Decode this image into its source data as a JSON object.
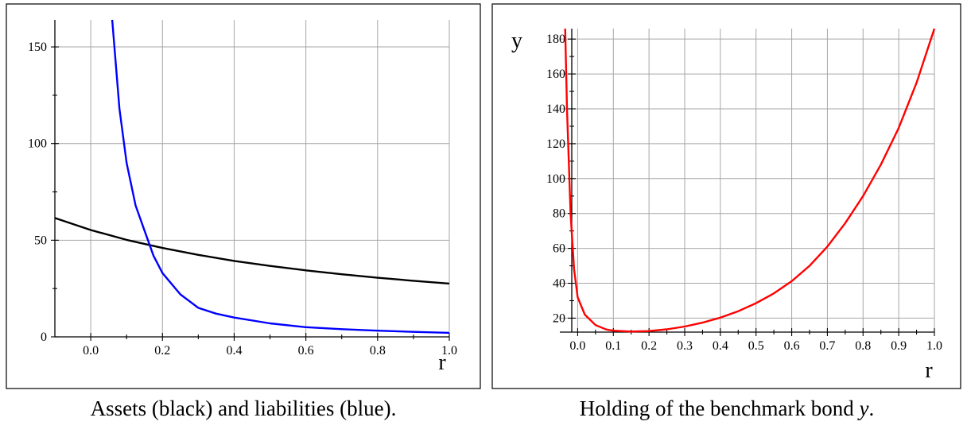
{
  "chart_data": [
    {
      "type": "line",
      "caption": "Assets (black) and liabilities (blue).",
      "xlabel": "r",
      "ylabel": "",
      "xlim": [
        -0.1,
        1.0
      ],
      "ylim": [
        0,
        164
      ],
      "x_ticks": [
        "0.0",
        "0.2",
        "0.4",
        "0.6",
        "0.8",
        "1.0"
      ],
      "y_ticks": [
        "0",
        "50",
        "100",
        "150"
      ],
      "grid": true,
      "series": [
        {
          "color": "#000000",
          "x": [
            -0.1,
            0.0,
            0.1,
            0.2,
            0.3,
            0.4,
            0.5,
            0.6,
            0.7,
            0.8,
            0.9,
            1.0
          ],
          "values": [
            61.5,
            55.3,
            50.2,
            46.0,
            42.4,
            39.3,
            36.7,
            34.4,
            32.4,
            30.6,
            29.0,
            27.6
          ]
        },
        {
          "color": "#0000ff",
          "x": [
            0.06,
            0.08,
            0.1,
            0.125,
            0.15,
            0.175,
            0.2,
            0.25,
            0.3,
            0.35,
            0.4,
            0.5,
            0.6,
            0.7,
            0.8,
            0.9,
            1.0
          ],
          "values": [
            164,
            118,
            90,
            68,
            55,
            42,
            33,
            22,
            15,
            12,
            10,
            7,
            5,
            4,
            3.2,
            2.6,
            2.1
          ]
        }
      ]
    },
    {
      "type": "line",
      "caption_prefix": "Holding of the benchmark bond ",
      "caption_var": "y",
      "caption_suffix": ".",
      "xlabel": "r",
      "ylabel": "y",
      "xlim": [
        -0.05,
        1.0
      ],
      "ylim": [
        12,
        186
      ],
      "x_ticks": [
        "0.0",
        "0.1",
        "0.2",
        "0.3",
        "0.4",
        "0.5",
        "0.6",
        "0.7",
        "0.8",
        "0.9",
        "1.0"
      ],
      "y_ticks": [
        "20",
        "40",
        "60",
        "80",
        "100",
        "120",
        "140",
        "160",
        "180"
      ],
      "grid": true,
      "series": [
        {
          "color": "#ff0000",
          "x": [
            -0.035,
            -0.03,
            -0.02,
            -0.01,
            0.0,
            0.02,
            0.05,
            0.08,
            0.1,
            0.15,
            0.2,
            0.25,
            0.3,
            0.35,
            0.4,
            0.45,
            0.5,
            0.55,
            0.6,
            0.65,
            0.7,
            0.75,
            0.8,
            0.85,
            0.9,
            0.95,
            1.0
          ],
          "values": [
            186,
            140,
            80,
            48,
            32,
            22,
            16,
            13.5,
            12.8,
            12.3,
            12.6,
            13.6,
            15.2,
            17.4,
            20.3,
            24.0,
            28.6,
            34.2,
            41.2,
            50.0,
            61.0,
            74.5,
            90.0,
            108.0,
            129.0,
            155.0,
            186.0
          ]
        }
      ]
    }
  ]
}
